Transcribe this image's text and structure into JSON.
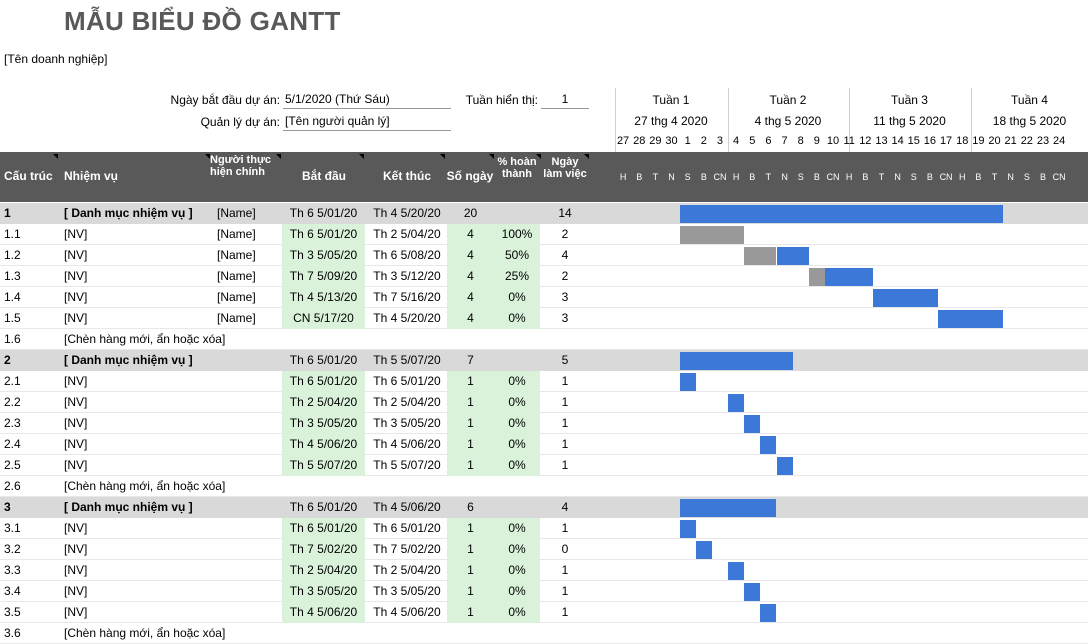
{
  "title": "MẪU BIỂU ĐỒ GANTT",
  "company": "[Tên doanh nghiệp]",
  "project": {
    "start_label": "Ngày bắt đầu dự án:",
    "start_value": "5/1/2020 (Thứ Sáu)",
    "manager_label": "Quản lý dự án:",
    "manager_value": "[Tên người quản lý]",
    "week_label": "Tuần hiển thị:",
    "week_value": "1"
  },
  "weeks": [
    {
      "name": "Tuần 1",
      "date": "27 thg 4 2020"
    },
    {
      "name": "Tuần 2",
      "date": "4 thg 5 2020"
    },
    {
      "name": "Tuần 3",
      "date": "11 thg 5 2020"
    },
    {
      "name": "Tuần 4",
      "date": "18 thg 5 2020"
    }
  ],
  "day_numbers": [
    "27",
    "28",
    "29",
    "30",
    "1",
    "2",
    "3",
    "4",
    "5",
    "6",
    "7",
    "8",
    "9",
    "10",
    "11",
    "12",
    "13",
    "14",
    "15",
    "16",
    "17",
    "18",
    "19",
    "20",
    "21",
    "22",
    "23",
    "24"
  ],
  "day_letters": [
    "H",
    "B",
    "T",
    "N",
    "S",
    "B",
    "CN",
    "H",
    "B",
    "T",
    "N",
    "S",
    "B",
    "CN",
    "H",
    "B",
    "T",
    "N",
    "S",
    "B",
    "CN",
    "H",
    "B",
    "T",
    "N",
    "S",
    "B",
    "CN"
  ],
  "columns": {
    "wbs": "Cấu trúc",
    "task": "Nhiệm vụ",
    "owner": "Người thực hiện chính",
    "start": "Bắt đầu",
    "end": "Kết thúc",
    "days": "Số ngày",
    "pct": "% hoàn thành",
    "work": "Ngày làm việc"
  },
  "rows": [
    {
      "wbs": "1",
      "task": "[ Danh mục nhiệm vụ ]",
      "owner": "[Name]",
      "start": "Th 6 5/01/20",
      "end": "Th 4 5/20/20",
      "days": "20",
      "pct": "",
      "work": "14",
      "type": "cat",
      "bar_start": 4,
      "bar_len": 20,
      "done": 0
    },
    {
      "wbs": "1.1",
      "task": "[NV]",
      "owner": "[Name]",
      "start": "Th 6 5/01/20",
      "end": "Th 2 5/04/20",
      "days": "4",
      "pct": "100%",
      "work": "2",
      "type": "task",
      "bar_start": 4,
      "bar_len": 4,
      "done": 1
    },
    {
      "wbs": "1.2",
      "task": "[NV]",
      "owner": "[Name]",
      "start": "Th 3 5/05/20",
      "end": "Th 6 5/08/20",
      "days": "4",
      "pct": "50%",
      "work": "4",
      "type": "task",
      "bar_start": 8,
      "bar_len": 4,
      "done": 0.5
    },
    {
      "wbs": "1.3",
      "task": "[NV]",
      "owner": "[Name]",
      "start": "Th 7 5/09/20",
      "end": "Th 3 5/12/20",
      "days": "4",
      "pct": "25%",
      "work": "2",
      "type": "task",
      "bar_start": 12,
      "bar_len": 4,
      "done": 0.25
    },
    {
      "wbs": "1.4",
      "task": "[NV]",
      "owner": "[Name]",
      "start": "Th 4 5/13/20",
      "end": "Th 7 5/16/20",
      "days": "4",
      "pct": "0%",
      "work": "3",
      "type": "task",
      "bar_start": 16,
      "bar_len": 4,
      "done": 0
    },
    {
      "wbs": "1.5",
      "task": "[NV]",
      "owner": "[Name]",
      "start": "CN 5/17/20",
      "end": "Th 4 5/20/20",
      "days": "4",
      "pct": "0%",
      "work": "3",
      "type": "task",
      "bar_start": 20,
      "bar_len": 4,
      "done": 0
    },
    {
      "wbs": "1.6",
      "task": "[Chèn hàng mới, ẩn hoặc xóa]",
      "owner": "",
      "start": "",
      "end": "",
      "days": "",
      "pct": "",
      "work": "",
      "type": "insert",
      "bar_start": 0,
      "bar_len": 0,
      "done": 0
    },
    {
      "wbs": "2",
      "task": "[ Danh mục nhiệm vụ ]",
      "owner": "",
      "start": "Th 6 5/01/20",
      "end": "Th 5 5/07/20",
      "days": "7",
      "pct": "",
      "work": "5",
      "type": "cat",
      "bar_start": 4,
      "bar_len": 7,
      "done": 0
    },
    {
      "wbs": "2.1",
      "task": "[NV]",
      "owner": "",
      "start": "Th 6 5/01/20",
      "end": "Th 6 5/01/20",
      "days": "1",
      "pct": "0%",
      "work": "1",
      "type": "task",
      "bar_start": 4,
      "bar_len": 1,
      "done": 0
    },
    {
      "wbs": "2.2",
      "task": "[NV]",
      "owner": "",
      "start": "Th 2 5/04/20",
      "end": "Th 2 5/04/20",
      "days": "1",
      "pct": "0%",
      "work": "1",
      "type": "task",
      "bar_start": 7,
      "bar_len": 1,
      "done": 0
    },
    {
      "wbs": "2.3",
      "task": "[NV]",
      "owner": "",
      "start": "Th 3 5/05/20",
      "end": "Th 3 5/05/20",
      "days": "1",
      "pct": "0%",
      "work": "1",
      "type": "task",
      "bar_start": 8,
      "bar_len": 1,
      "done": 0
    },
    {
      "wbs": "2.4",
      "task": "[NV]",
      "owner": "",
      "start": "Th 4 5/06/20",
      "end": "Th 4 5/06/20",
      "days": "1",
      "pct": "0%",
      "work": "1",
      "type": "task",
      "bar_start": 9,
      "bar_len": 1,
      "done": 0
    },
    {
      "wbs": "2.5",
      "task": "[NV]",
      "owner": "",
      "start": "Th 5 5/07/20",
      "end": "Th 5 5/07/20",
      "days": "1",
      "pct": "0%",
      "work": "1",
      "type": "task",
      "bar_start": 10,
      "bar_len": 1,
      "done": 0
    },
    {
      "wbs": "2.6",
      "task": "[Chèn hàng mới, ẩn hoặc xóa]",
      "owner": "",
      "start": "",
      "end": "",
      "days": "",
      "pct": "",
      "work": "",
      "type": "insert",
      "bar_start": 0,
      "bar_len": 0,
      "done": 0
    },
    {
      "wbs": "3",
      "task": "[ Danh mục nhiệm vụ ]",
      "owner": "",
      "start": "Th 6 5/01/20",
      "end": "Th 4 5/06/20",
      "days": "6",
      "pct": "",
      "work": "4",
      "type": "cat",
      "bar_start": 4,
      "bar_len": 6,
      "done": 0
    },
    {
      "wbs": "3.1",
      "task": "[NV]",
      "owner": "",
      "start": "Th 6 5/01/20",
      "end": "Th 6 5/01/20",
      "days": "1",
      "pct": "0%",
      "work": "1",
      "type": "task",
      "bar_start": 4,
      "bar_len": 1,
      "done": 0
    },
    {
      "wbs": "3.2",
      "task": "[NV]",
      "owner": "",
      "start": "Th 7 5/02/20",
      "end": "Th 7 5/02/20",
      "days": "1",
      "pct": "0%",
      "work": "0",
      "type": "task",
      "bar_start": 5,
      "bar_len": 1,
      "done": 0
    },
    {
      "wbs": "3.3",
      "task": "[NV]",
      "owner": "",
      "start": "Th 2 5/04/20",
      "end": "Th 2 5/04/20",
      "days": "1",
      "pct": "0%",
      "work": "1",
      "type": "task",
      "bar_start": 7,
      "bar_len": 1,
      "done": 0
    },
    {
      "wbs": "3.4",
      "task": "[NV]",
      "owner": "",
      "start": "Th 3 5/05/20",
      "end": "Th 3 5/05/20",
      "days": "1",
      "pct": "0%",
      "work": "1",
      "type": "task",
      "bar_start": 8,
      "bar_len": 1,
      "done": 0
    },
    {
      "wbs": "3.5",
      "task": "[NV]",
      "owner": "",
      "start": "Th 4 5/06/20",
      "end": "Th 4 5/06/20",
      "days": "1",
      "pct": "0%",
      "work": "1",
      "type": "task",
      "bar_start": 9,
      "bar_len": 1,
      "done": 0
    },
    {
      "wbs": "3.6",
      "task": "[Chèn hàng mới, ẩn hoặc xóa]",
      "owner": "",
      "start": "",
      "end": "",
      "days": "",
      "pct": "",
      "work": "",
      "type": "insert",
      "bar_start": 0,
      "bar_len": 0,
      "done": 0
    }
  ],
  "colors": {
    "header_bg": "#595959",
    "category_bg": "#d9d9d9",
    "bar": "#3c78d8",
    "bar_done": "#999999",
    "date_cell": "#d9f2d9"
  }
}
